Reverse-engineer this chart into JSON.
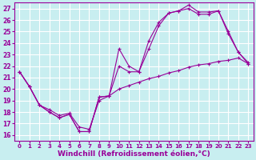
{
  "background_color": "#c8eef0",
  "grid_color": "#ffffff",
  "line_color": "#990099",
  "marker": "+",
  "xlabel": "Windchill (Refroidissement éolien,°C)",
  "xlabel_fontsize": 6.5,
  "ylabel_ticks": [
    16,
    17,
    18,
    19,
    20,
    21,
    22,
    23,
    24,
    25,
    26,
    27
  ],
  "xlabel_ticks": [
    0,
    1,
    2,
    3,
    4,
    5,
    6,
    7,
    8,
    9,
    10,
    11,
    12,
    13,
    14,
    15,
    16,
    17,
    18,
    19,
    20,
    21,
    22,
    23
  ],
  "xlim": [
    -0.5,
    23.5
  ],
  "ylim": [
    15.5,
    27.5
  ],
  "line1_x": [
    0,
    1,
    2,
    3,
    4,
    5,
    6,
    7,
    8,
    9,
    10,
    11,
    12,
    13,
    14,
    15,
    16,
    17,
    18,
    19,
    20,
    21,
    22,
    23
  ],
  "line1_y": [
    21.5,
    20.2,
    18.6,
    18.0,
    17.5,
    17.8,
    16.3,
    16.3,
    19.3,
    19.4,
    23.5,
    22.0,
    21.5,
    24.2,
    25.8,
    26.6,
    26.8,
    27.3,
    26.7,
    26.7,
    26.8,
    25.0,
    23.2,
    22.3
  ],
  "line2_x": [
    0,
    1,
    2,
    3,
    4,
    5,
    6,
    7,
    8,
    9,
    10,
    11,
    12,
    13,
    14,
    15,
    16,
    17,
    18,
    19,
    20,
    21,
    22,
    23
  ],
  "line2_y": [
    21.5,
    20.2,
    18.6,
    18.0,
    17.5,
    17.8,
    16.3,
    16.3,
    19.3,
    19.4,
    22.0,
    21.5,
    21.5,
    23.5,
    25.5,
    26.6,
    26.8,
    27.0,
    26.5,
    26.5,
    26.8,
    24.8,
    23.2,
    22.2
  ],
  "line3_x": [
    0,
    1,
    2,
    3,
    4,
    5,
    6,
    7,
    8,
    9,
    10,
    11,
    12,
    13,
    14,
    15,
    16,
    17,
    18,
    19,
    20,
    21,
    22,
    23
  ],
  "line3_y": [
    21.5,
    20.2,
    18.6,
    18.2,
    17.7,
    17.9,
    16.7,
    16.5,
    19.0,
    19.4,
    20.0,
    20.3,
    20.6,
    20.9,
    21.1,
    21.4,
    21.6,
    21.9,
    22.1,
    22.2,
    22.4,
    22.5,
    22.7,
    22.2
  ]
}
